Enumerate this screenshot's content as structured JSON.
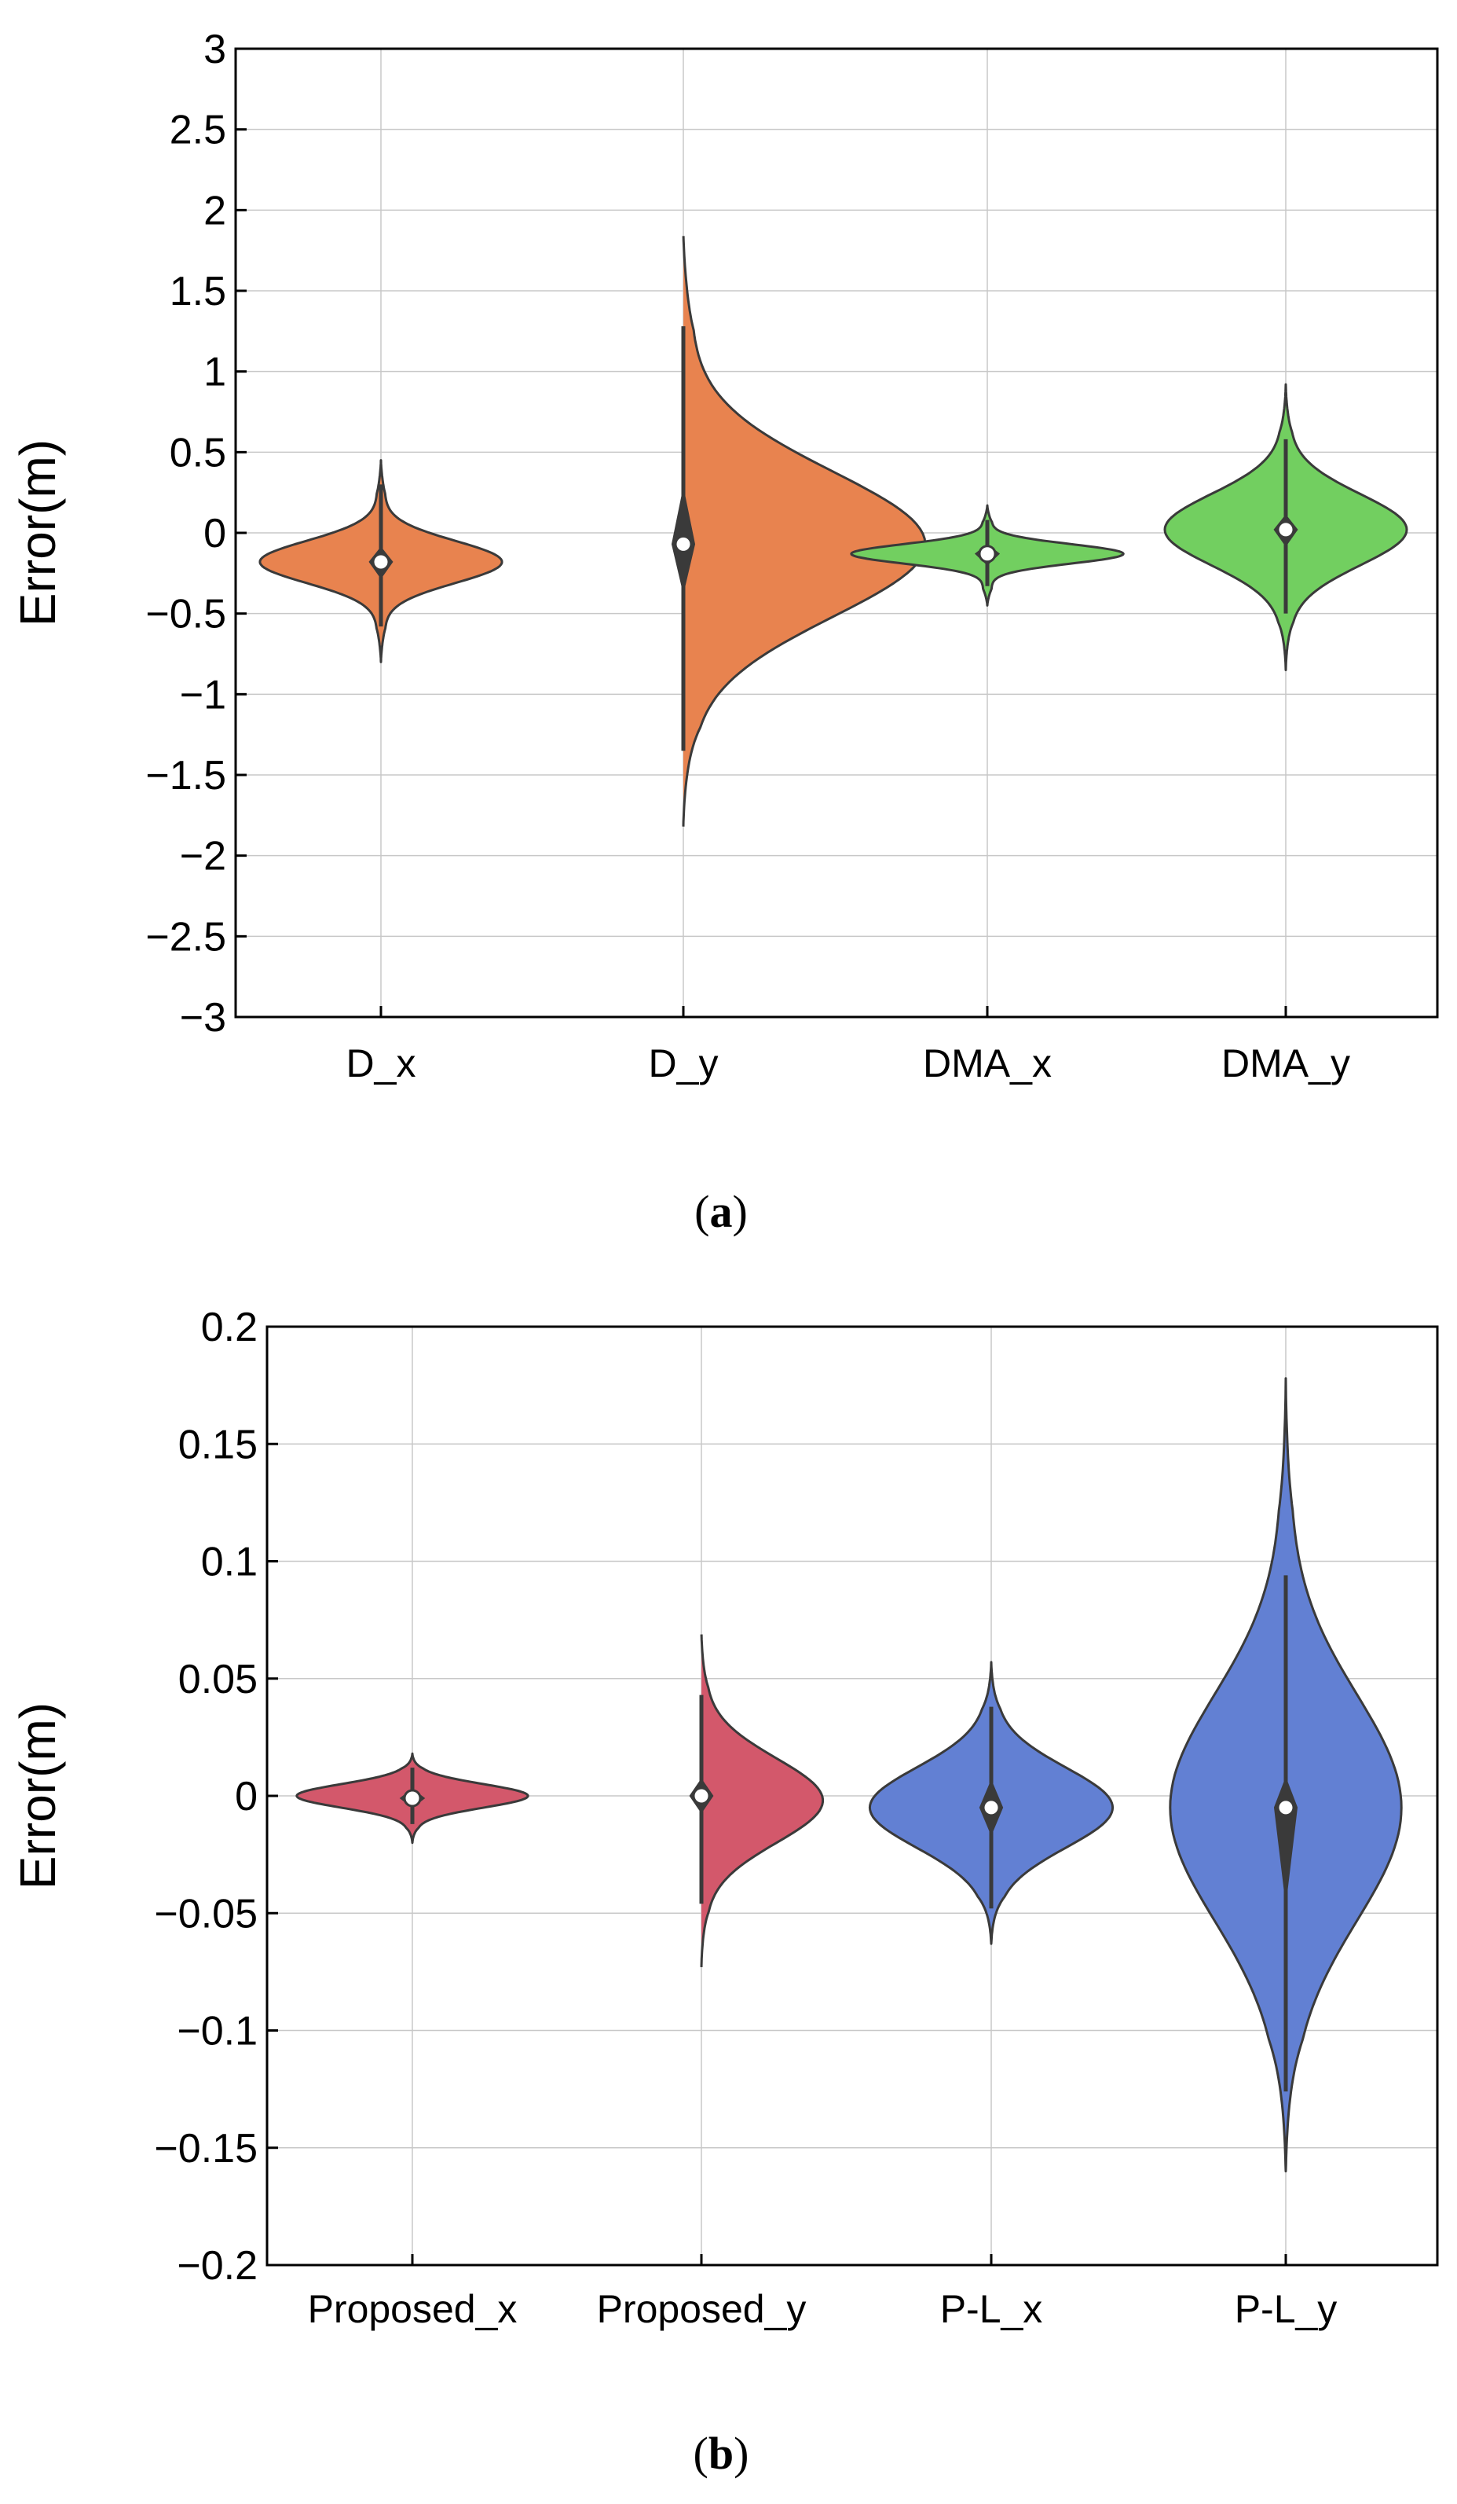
{
  "colors": {
    "orange": "#e8834f",
    "green": "#72cf60",
    "red": "#d3586b",
    "blue": "#6280d3",
    "outline": "#3a3a3a",
    "box": "#3a3a3a",
    "grid": "#c8c8c8"
  },
  "chart_data": [
    {
      "type": "violin",
      "panel_label": "a",
      "ylabel": "Error(m)",
      "xlabel": "",
      "ylim": [
        -3,
        3
      ],
      "yticks": [
        3,
        2.5,
        2,
        1.5,
        1,
        0.5,
        0,
        -0.5,
        -1,
        -1.5,
        -2,
        -2.5,
        -3
      ],
      "ytick_labels": [
        "3",
        "2.5",
        "2",
        "1.5",
        "1",
        "0.5",
        "0",
        "−0.5",
        "−1",
        "−1.5",
        "−2",
        "−2.5",
        "−3"
      ],
      "grid": true,
      "categories": [
        "D_x",
        "D_y",
        "DMA_x",
        "DMA_y"
      ],
      "series": [
        {
          "name": "D_x",
          "color": "#e8834f",
          "median": -0.18,
          "q1": -0.25,
          "q3": -0.12,
          "whisker_low": -0.58,
          "whisker_high": 0.3,
          "min": -0.8,
          "max": 0.45,
          "peak": -0.18,
          "half_width": 0.4,
          "spread_up": 0.13,
          "spread_down": 0.13
        },
        {
          "name": "D_y",
          "color": "#e8834f",
          "median": -0.07,
          "q1": -0.32,
          "q3": 0.22,
          "whisker_low": -1.35,
          "whisker_high": 1.28,
          "min": -1.82,
          "max": 1.87,
          "peak": -0.07,
          "half_width": 0.8,
          "spread_up": 0.45,
          "spread_down": 0.45
        },
        {
          "name": "DMA_x",
          "color": "#72cf60",
          "median": -0.13,
          "q1": -0.17,
          "q3": -0.1,
          "whisker_low": -0.33,
          "whisker_high": 0.08,
          "min": -0.45,
          "max": 0.17,
          "peak": -0.13,
          "half_width": 0.45,
          "spread_up": 0.06,
          "spread_down": 0.06
        },
        {
          "name": "DMA_y",
          "color": "#72cf60",
          "median": 0.02,
          "q1": -0.05,
          "q3": 0.08,
          "whisker_low": -0.5,
          "whisker_high": 0.58,
          "min": -0.85,
          "max": 0.92,
          "peak": 0.02,
          "half_width": 0.4,
          "spread_up": 0.22,
          "spread_down": 0.22
        }
      ]
    },
    {
      "type": "violin",
      "panel_label": "b",
      "ylabel": "Error(m)",
      "xlabel": "",
      "ylim": [
        -0.2,
        0.2
      ],
      "yticks": [
        0.2,
        0.15,
        0.1,
        0.05,
        0,
        -0.05,
        -0.1,
        -0.15,
        -0.2
      ],
      "ytick_labels": [
        "0.2",
        "0.15",
        "0.1",
        "0.05",
        "0",
        "−0.05",
        "−0.1",
        "−0.15",
        "−0.2"
      ],
      "grid": true,
      "categories": [
        "Proposed_x",
        "Proposed_y",
        "P-L_x",
        "P-L_y"
      ],
      "series": [
        {
          "name": "Proposed_x",
          "color": "#d3586b",
          "median": -0.001,
          "q1": -0.003,
          "q3": 0.001,
          "whisker_low": -0.012,
          "whisker_high": 0.012,
          "min": -0.02,
          "max": 0.018,
          "peak": 0.0,
          "half_width": 0.4,
          "spread_up": 0.005,
          "spread_down": 0.005
        },
        {
          "name": "Proposed_y",
          "color": "#d3586b",
          "median": 0.0,
          "q1": -0.005,
          "q3": 0.005,
          "whisker_low": -0.046,
          "whisker_high": 0.043,
          "min": -0.073,
          "max": 0.07,
          "peak": -0.002,
          "half_width": 0.42,
          "spread_up": 0.018,
          "spread_down": 0.018
        },
        {
          "name": "P-L_x",
          "color": "#6280d3",
          "median": -0.005,
          "q1": -0.014,
          "q3": 0.004,
          "whisker_low": -0.048,
          "whisker_high": 0.038,
          "min": -0.063,
          "max": 0.057,
          "peak": -0.005,
          "half_width": 0.42,
          "spread_up": 0.017,
          "spread_down": 0.017
        },
        {
          "name": "P-L_y",
          "color": "#6280d3",
          "median": -0.005,
          "q1": -0.04,
          "q3": 0.005,
          "whisker_low": -0.126,
          "whisker_high": 0.094,
          "min": -0.16,
          "max": 0.178,
          "peak": -0.005,
          "half_width": 0.4,
          "spread_up": 0.048,
          "spread_down": 0.048
        }
      ]
    }
  ]
}
